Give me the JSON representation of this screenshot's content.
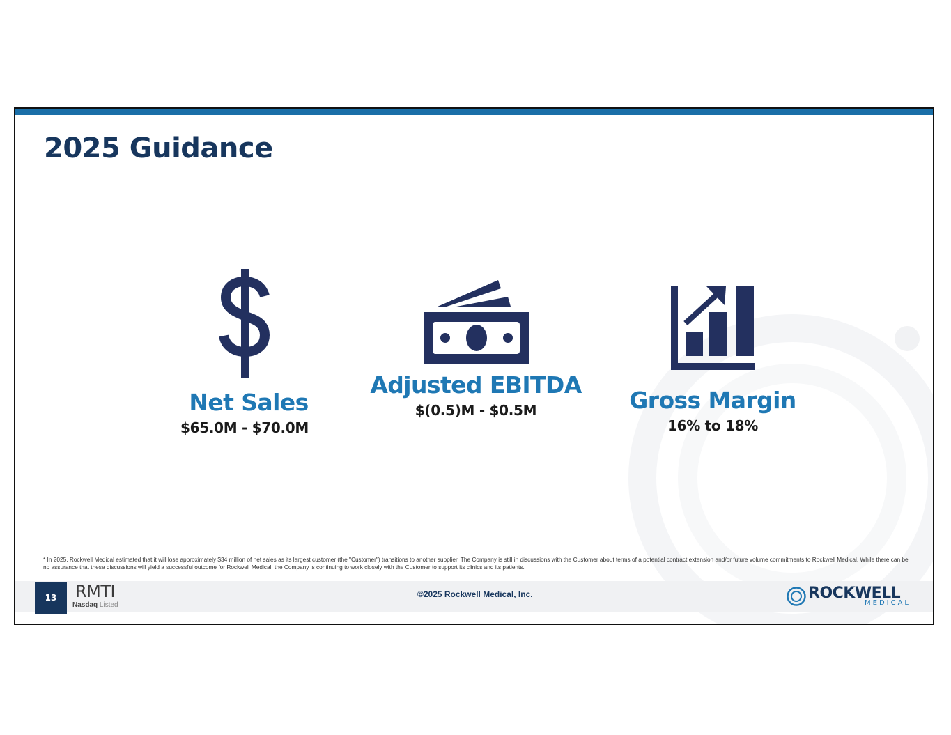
{
  "slide": {
    "title": "2025 Guidance",
    "metrics": [
      {
        "icon": "dollar-sign-icon",
        "label": "Net Sales",
        "value": "$65.0M - $70.0M"
      },
      {
        "icon": "cash-bills-icon",
        "label": "Adjusted EBITDA",
        "value": "$(0.5)M - $0.5M"
      },
      {
        "icon": "bar-chart-growth-icon",
        "label": "Gross Margin",
        "value": "16% to 18%"
      }
    ],
    "footnote": "* In 2025, Rockwell Medical estimated that it will lose approximately $34 million of net sales as its largest customer (the \"Customer\") transitions to another supplier. The Company is still in discussions with the Customer about terms of a potential contract extension and/or future volume commitments to Rockwell Medical. While there can be no assurance that these discussions will yield a successful outcome for Rockwell Medical, the Company is continuing to work closely with the Customer to support its clinics and its patients."
  },
  "footer": {
    "page_number": "13",
    "ticker": "RMTI",
    "exchange_name": "Nasdaq",
    "exchange_status": "Listed",
    "copyright": "©2025 Rockwell Medical, Inc.",
    "logo_word": "ROCKWELL",
    "logo_sub": "MEDICAL"
  },
  "colors": {
    "title": "#17365d",
    "accent_blue": "#1f78b4",
    "icon_navy": "#23305f",
    "top_bar": "#1a6fa8",
    "footer_bg": "#f0f1f3"
  }
}
